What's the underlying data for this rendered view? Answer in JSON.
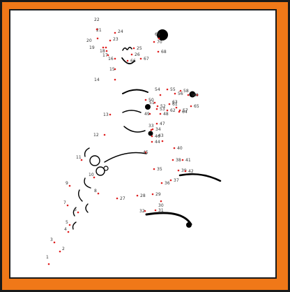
{
  "colors": {
    "frame": "#f07818",
    "border": "#1a1a1a",
    "paper": "#ffffff",
    "dot": "#e02020",
    "ink": "#000000",
    "label": "#333333"
  },
  "puzzle": {
    "type": "connect-the-dots",
    "subject": "running figure",
    "dot_numbers": [
      "1",
      "2",
      "3",
      "4",
      "5",
      "6",
      "7",
      "8",
      "9",
      "10",
      "11",
      "12",
      "13",
      "14",
      "15",
      "16",
      "17",
      "18",
      "19",
      "20",
      "21",
      "22",
      "23",
      "24",
      "25",
      "26",
      "27",
      "28",
      "29",
      "30",
      "31",
      "32",
      "33",
      "34",
      "35",
      "36",
      "37",
      "38",
      "39",
      "40",
      "41",
      "42",
      "43",
      "44",
      "45",
      "46",
      "47",
      "48",
      "49",
      "50",
      "51",
      "52",
      "53",
      "54",
      "55",
      "56",
      "57",
      "58",
      "59",
      "60",
      "61",
      "62",
      "63",
      "64",
      "65",
      "66",
      "67",
      "68",
      "69",
      "70"
    ]
  }
}
